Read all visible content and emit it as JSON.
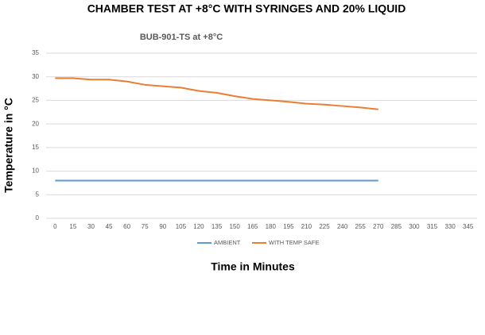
{
  "chart_data": {
    "type": "line",
    "title": "CHAMBER TEST AT +8°C WITH SYRINGES AND 20% LIQUID",
    "subtitle": "BUB-901-TS at +8°C",
    "y_label": "Temperature in °C",
    "x_label": "Time in Minutes",
    "categories": [
      0,
      15,
      30,
      45,
      60,
      75,
      90,
      105,
      120,
      135,
      150,
      165,
      180,
      195,
      210,
      225,
      240,
      255,
      270,
      285,
      300,
      315,
      330,
      345
    ],
    "series": [
      {
        "name": "AMBIENT",
        "color": "#5b9bd5",
        "values": [
          8,
          8,
          8,
          8,
          8,
          8,
          8,
          8,
          8,
          8,
          8,
          8,
          8,
          8,
          8,
          8,
          8,
          8,
          8,
          null,
          null,
          null,
          null,
          null
        ]
      },
      {
        "name": "WITH TEMP SAFE",
        "color": "#ed7d31",
        "values": [
          29.7,
          29.7,
          29.4,
          29.4,
          29.0,
          28.3,
          28.0,
          27.7,
          27.0,
          26.6,
          25.9,
          25.3,
          25.0,
          24.7,
          24.3,
          24.1,
          23.8,
          23.5,
          23.1,
          null,
          null,
          null,
          null,
          null
        ]
      }
    ],
    "ylim": [
      0,
      35
    ],
    "yticks": [
      0,
      5,
      10,
      15,
      20,
      25,
      30,
      35
    ],
    "grid": true,
    "legend": "bottom"
  }
}
